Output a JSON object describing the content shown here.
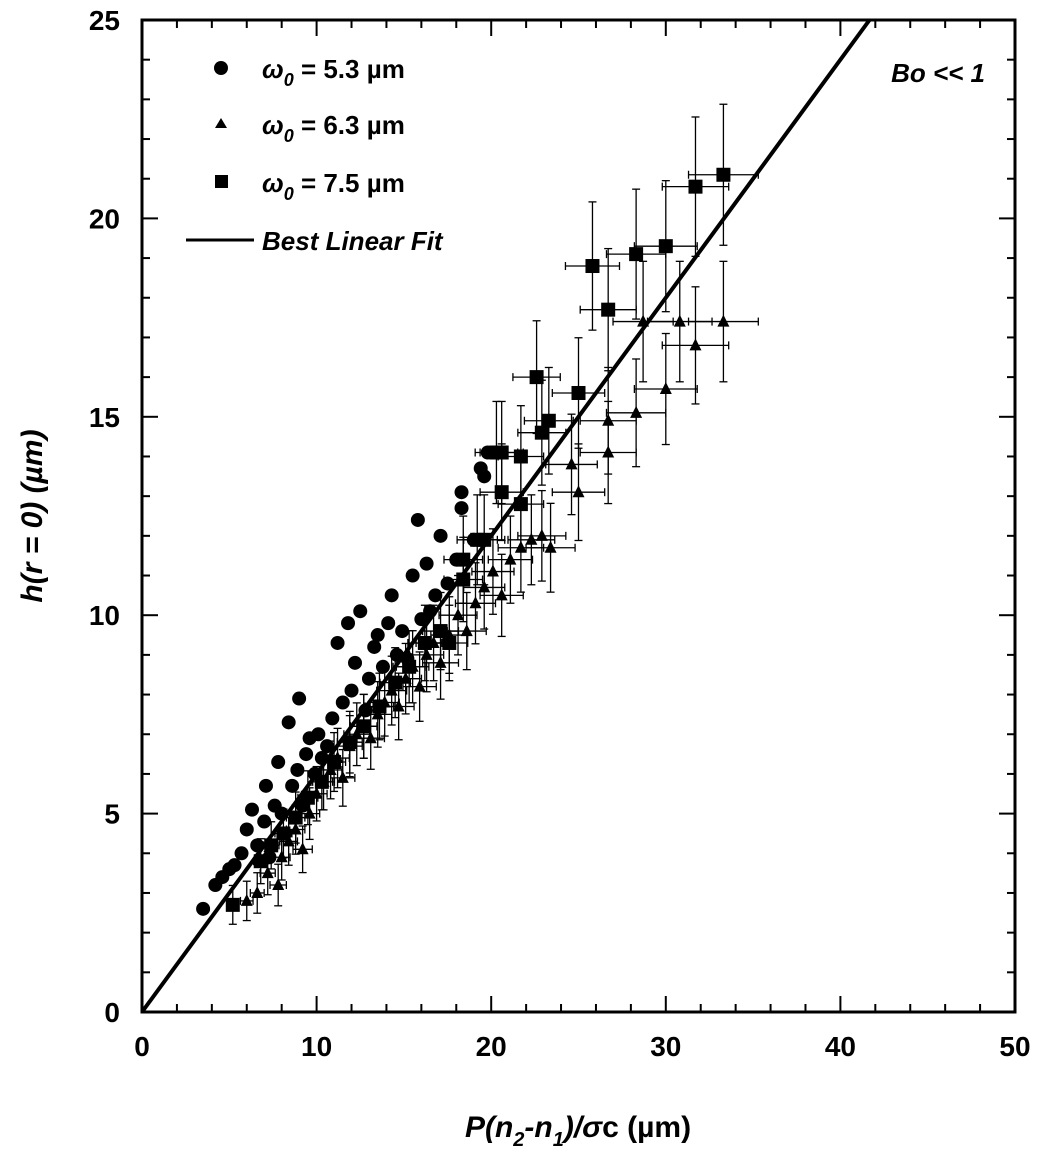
{
  "chart_data": {
    "type": "scatter",
    "xlabel": {
      "main": "P(n",
      "sub1": "2",
      "mid": "-n",
      "sub2": "1",
      "tail": ")/",
      "sym": "σ",
      "end": "c (µm)"
    },
    "ylabel": "h(r = 0) (µm)",
    "xlim": [
      0,
      50
    ],
    "ylim": [
      0,
      25
    ],
    "x_ticks": [
      "0",
      "10",
      "20",
      "30",
      "40",
      "50"
    ],
    "y_ticks": [
      "0",
      "5",
      "10",
      "15",
      "20",
      "25"
    ],
    "annotation": "Bo << 1",
    "legend_position": "top-left",
    "legend": {
      "omega_symbol": "ω",
      "omega_sub": "0",
      "entries": [
        {
          "marker": "circle",
          "text": " = 5.3 µm"
        },
        {
          "marker": "triangle",
          "text": " = 6.3 µm"
        },
        {
          "marker": "square",
          "text": " = 7.5 µm"
        },
        {
          "marker": "line",
          "text": "Best Linear Fit"
        }
      ]
    },
    "fit_line": {
      "slope": 0.6,
      "intercept": 0
    },
    "series": [
      {
        "marker": "circle",
        "points": [
          [
            3.5,
            2.6
          ],
          [
            4.2,
            3.2
          ],
          [
            4.6,
            3.4
          ],
          [
            5.0,
            3.6
          ],
          [
            5.3,
            3.7
          ],
          [
            5.7,
            4.0
          ],
          [
            6.0,
            4.6
          ],
          [
            6.3,
            5.1
          ],
          [
            6.6,
            4.2
          ],
          [
            7.0,
            4.8
          ],
          [
            7.1,
            5.7
          ],
          [
            7.3,
            3.9
          ],
          [
            7.6,
            5.2
          ],
          [
            7.8,
            6.3
          ],
          [
            8.0,
            5.0
          ],
          [
            8.2,
            4.5
          ],
          [
            8.4,
            7.3
          ],
          [
            8.6,
            5.7
          ],
          [
            8.9,
            6.1
          ],
          [
            9.0,
            7.9
          ],
          [
            9.2,
            5.2
          ],
          [
            9.4,
            6.5
          ],
          [
            9.6,
            6.9
          ],
          [
            9.9,
            6.0
          ],
          [
            10.1,
            7.0
          ],
          [
            10.3,
            6.4
          ],
          [
            10.6,
            6.7
          ],
          [
            10.9,
            7.4
          ],
          [
            11.2,
            9.3
          ],
          [
            11.5,
            7.8
          ],
          [
            11.8,
            9.8
          ],
          [
            12.0,
            8.1
          ],
          [
            12.2,
            8.8
          ],
          [
            12.5,
            10.1
          ],
          [
            12.8,
            7.6
          ],
          [
            13.0,
            8.4
          ],
          [
            13.3,
            9.2
          ],
          [
            13.5,
            9.5
          ],
          [
            13.8,
            8.7
          ],
          [
            14.1,
            9.8
          ],
          [
            14.3,
            10.5
          ],
          [
            14.6,
            9.0
          ],
          [
            14.9,
            9.6
          ],
          [
            15.2,
            8.9
          ],
          [
            15.5,
            11.0
          ],
          [
            15.8,
            12.4
          ],
          [
            16.0,
            9.9
          ],
          [
            16.3,
            11.3
          ],
          [
            16.5,
            10.1
          ],
          [
            16.8,
            10.5
          ],
          [
            17.1,
            12.0
          ],
          [
            17.5,
            10.8
          ],
          [
            18.0,
            11.4
          ],
          [
            18.3,
            12.7
          ],
          [
            18.3,
            13.1
          ],
          [
            19.0,
            11.9
          ],
          [
            19.4,
            13.7
          ],
          [
            19.6,
            13.5
          ],
          [
            19.8,
            14.1
          ],
          [
            20.2,
            14.1
          ]
        ]
      },
      {
        "marker": "triangle",
        "points": [
          [
            6.0,
            2.8
          ],
          [
            6.6,
            3.0
          ],
          [
            7.2,
            3.5
          ],
          [
            7.8,
            3.2
          ],
          [
            8.0,
            3.9
          ],
          [
            8.4,
            4.3
          ],
          [
            8.8,
            4.6
          ],
          [
            9.2,
            4.1
          ],
          [
            9.6,
            5.0
          ],
          [
            10.0,
            5.5
          ],
          [
            10.4,
            5.8
          ],
          [
            10.8,
            6.1
          ],
          [
            11.2,
            6.4
          ],
          [
            11.5,
            5.9
          ],
          [
            11.9,
            6.7
          ],
          [
            12.3,
            7.0
          ],
          [
            12.7,
            7.2
          ],
          [
            13.1,
            6.9
          ],
          [
            13.5,
            7.5
          ],
          [
            13.9,
            7.8
          ],
          [
            14.3,
            8.1
          ],
          [
            14.7,
            7.7
          ],
          [
            15.1,
            8.4
          ],
          [
            15.5,
            8.7
          ],
          [
            15.9,
            8.2
          ],
          [
            16.3,
            9.0
          ],
          [
            16.7,
            9.3
          ],
          [
            17.1,
            8.8
          ],
          [
            17.6,
            9.5
          ],
          [
            18.1,
            10.0
          ],
          [
            18.6,
            9.6
          ],
          [
            19.1,
            10.3
          ],
          [
            19.6,
            10.7
          ],
          [
            20.1,
            11.1
          ],
          [
            20.6,
            10.5
          ],
          [
            21.1,
            11.4
          ],
          [
            21.7,
            11.7
          ],
          [
            22.3,
            11.9
          ],
          [
            22.9,
            12.0
          ],
          [
            23.4,
            11.7
          ],
          [
            24.6,
            13.8
          ],
          [
            25.0,
            13.1
          ],
          [
            26.7,
            14.1
          ],
          [
            26.7,
            14.9
          ],
          [
            28.3,
            15.1
          ],
          [
            28.7,
            17.4
          ],
          [
            30.0,
            15.7
          ],
          [
            30.8,
            17.4
          ],
          [
            31.7,
            16.8
          ],
          [
            33.3,
            17.4
          ]
        ]
      },
      {
        "marker": "square",
        "points": [
          [
            5.2,
            2.7
          ],
          [
            6.8,
            3.8
          ],
          [
            7.4,
            4.2
          ],
          [
            8.1,
            4.5
          ],
          [
            8.8,
            4.9
          ],
          [
            9.5,
            5.4
          ],
          [
            10.3,
            5.8
          ],
          [
            11.0,
            6.3
          ],
          [
            11.9,
            6.8
          ],
          [
            12.7,
            7.2
          ],
          [
            13.6,
            7.7
          ],
          [
            14.5,
            8.3
          ],
          [
            15.3,
            8.7
          ],
          [
            16.2,
            9.3
          ],
          [
            17.1,
            9.6
          ],
          [
            17.6,
            9.3
          ],
          [
            18.4,
            11.4
          ],
          [
            18.4,
            10.9
          ],
          [
            19.2,
            11.9
          ],
          [
            19.6,
            11.9
          ],
          [
            20.3,
            14.1
          ],
          [
            20.6,
            14.1
          ],
          [
            20.6,
            13.1
          ],
          [
            21.7,
            12.8
          ],
          [
            21.7,
            14.0
          ],
          [
            22.6,
            16.0
          ],
          [
            22.9,
            14.6
          ],
          [
            23.3,
            14.9
          ],
          [
            25.0,
            15.6
          ],
          [
            25.8,
            18.8
          ],
          [
            26.7,
            17.7
          ],
          [
            28.3,
            19.1
          ],
          [
            30.0,
            19.3
          ],
          [
            31.7,
            20.8
          ],
          [
            33.3,
            21.1
          ]
        ]
      }
    ]
  }
}
